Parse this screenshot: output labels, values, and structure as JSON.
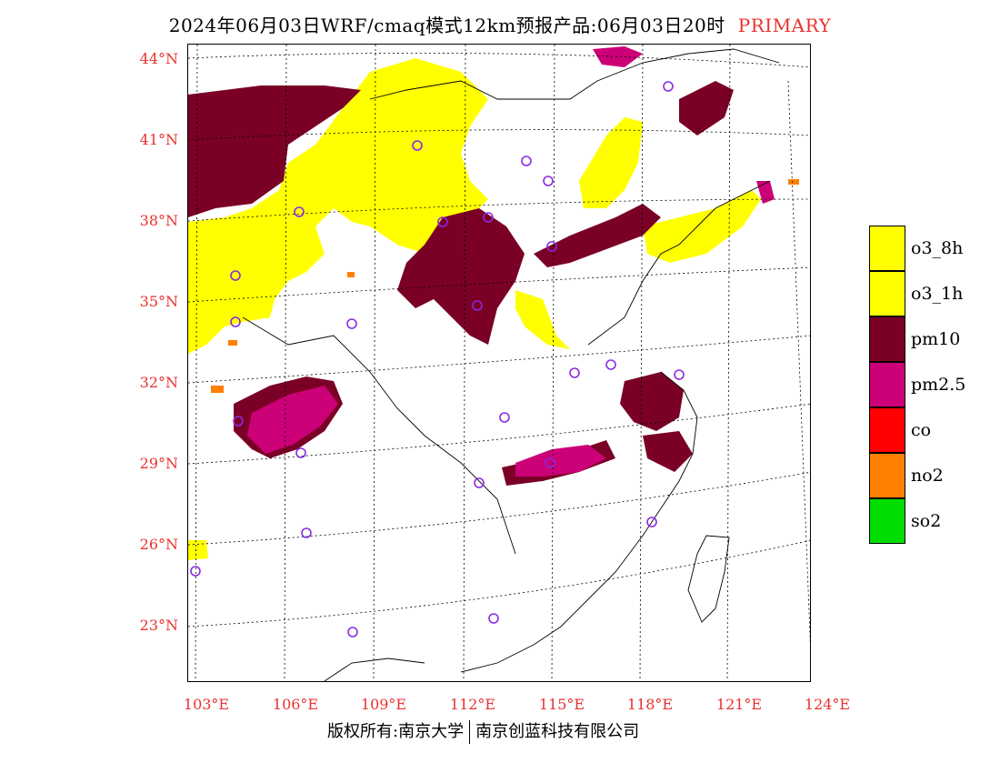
{
  "title": {
    "text": "2024年06月03日WRF/cmaq模式12km预报产品:06月03日20时",
    "tag": "PRIMARY"
  },
  "axes": {
    "lat_ticks": [
      "44°N",
      "41°N",
      "38°N",
      "35°N",
      "32°N",
      "29°N",
      "26°N",
      "23°N"
    ],
    "lon_ticks": [
      "103°E",
      "106°E",
      "109°E",
      "112°E",
      "115°E",
      "118°E",
      "121°E",
      "124°E"
    ]
  },
  "legend": {
    "items": [
      {
        "label": "o3_8h",
        "color": "#ffff00"
      },
      {
        "label": "o3_1h",
        "color": "#ffff00"
      },
      {
        "label": "pm10",
        "color": "#7a0026"
      },
      {
        "label": "pm2.5",
        "color": "#cc0077"
      },
      {
        "label": "co",
        "color": "#ff0000"
      },
      {
        "label": "no2",
        "color": "#ff7f00"
      },
      {
        "label": "so2",
        "color": "#00dd00"
      }
    ]
  },
  "footer": {
    "left": "版权所有:南京大学",
    "right": "南京创蓝科技有限公司"
  },
  "colors": {
    "label_red": "#e8322f",
    "o3": "#ffff00",
    "pm10": "#7a0026",
    "pm25": "#cc0077",
    "no2": "#ff7f00",
    "station_circle": "#8a2be2"
  }
}
